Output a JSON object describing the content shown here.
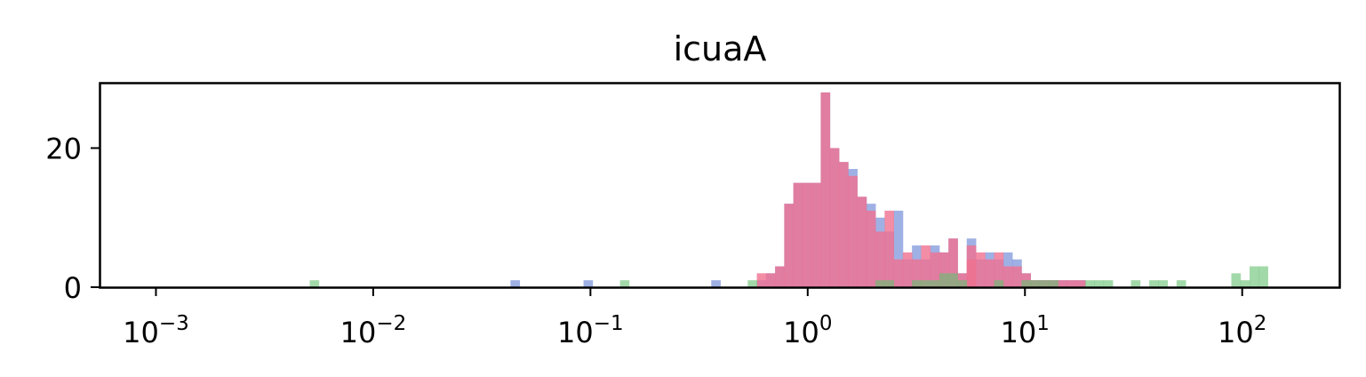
{
  "chart_data": {
    "type": "histogram",
    "title": "icuaA",
    "xlabel": "",
    "ylabel": "",
    "xscale": "log",
    "xlim": [
      0.00055,
      280
    ],
    "ylim": [
      0,
      29.4
    ],
    "grid": false,
    "legend": "none",
    "x_ticks": [
      {
        "value": 0.001,
        "base": "10",
        "exp": "−3"
      },
      {
        "value": 0.01,
        "base": "10",
        "exp": "−2"
      },
      {
        "value": 0.1,
        "base": "10",
        "exp": "−1"
      },
      {
        "value": 1,
        "base": "10",
        "exp": "0"
      },
      {
        "value": 10,
        "base": "10",
        "exp": "1"
      },
      {
        "value": 100,
        "base": "10",
        "exp": "2"
      }
    ],
    "y_ticks": [
      {
        "value": 0,
        "label": "0"
      },
      {
        "value": 20,
        "label": "20"
      }
    ],
    "bin_edges_log10_start": -2.25,
    "bin_width_log10": 0.042,
    "series": [
      {
        "color": "#6b87d6",
        "opacity": 0.65,
        "bins": [
          [
            0.0437,
            1
          ],
          [
            0.0997,
            1
          ],
          [
            0.376,
            1
          ],
          [
            0.624,
            1
          ],
          [
            0.686,
            2
          ],
          [
            0.753,
            3
          ],
          [
            0.827,
            12
          ],
          [
            0.908,
            15
          ],
          [
            0.998,
            15
          ],
          [
            1.096,
            15
          ],
          [
            1.204,
            28
          ],
          [
            1.322,
            20
          ],
          [
            1.452,
            18
          ],
          [
            1.595,
            17
          ],
          [
            1.752,
            13
          ],
          [
            1.924,
            12
          ],
          [
            2.114,
            10
          ],
          [
            2.321,
            8
          ],
          [
            2.549,
            11
          ],
          [
            2.8,
            4
          ],
          [
            3.076,
            6
          ],
          [
            3.378,
            4
          ],
          [
            3.71,
            6
          ],
          [
            4.075,
            5
          ],
          [
            4.476,
            7
          ],
          [
            4.916,
            2
          ],
          [
            5.399,
            1
          ],
          [
            5.93,
            7
          ],
          [
            6.514,
            4
          ],
          [
            7.154,
            5
          ],
          [
            7.857,
            4
          ],
          [
            8.63,
            5
          ],
          [
            9.479,
            4
          ],
          [
            10.41,
            2
          ],
          [
            11.43,
            1
          ],
          [
            12.56,
            1
          ],
          [
            13.79,
            1
          ],
          [
            15.15,
            1
          ],
          [
            16.64,
            1
          ],
          [
            18.28,
            1
          ]
        ]
      },
      {
        "color": "#f07090",
        "opacity": 0.8,
        "bins": [
          [
            0.624,
            2
          ],
          [
            0.686,
            2
          ],
          [
            0.753,
            3
          ],
          [
            0.827,
            12
          ],
          [
            0.908,
            15
          ],
          [
            0.998,
            15
          ],
          [
            1.096,
            15
          ],
          [
            1.204,
            28
          ],
          [
            1.322,
            20
          ],
          [
            1.452,
            18
          ],
          [
            1.595,
            16
          ],
          [
            1.752,
            13
          ],
          [
            1.924,
            11
          ],
          [
            2.114,
            8
          ],
          [
            2.321,
            11
          ],
          [
            2.549,
            4
          ],
          [
            2.8,
            5
          ],
          [
            3.076,
            4
          ],
          [
            3.378,
            6
          ],
          [
            3.71,
            5
          ],
          [
            4.075,
            5
          ],
          [
            4.476,
            7
          ],
          [
            4.916,
            2
          ],
          [
            5.399,
            6
          ],
          [
            5.93,
            4
          ],
          [
            6.514,
            5
          ],
          [
            7.154,
            4
          ],
          [
            7.857,
            5
          ],
          [
            8.63,
            3
          ],
          [
            9.479,
            3
          ],
          [
            10.41,
            2
          ],
          [
            11.43,
            1
          ],
          [
            12.56,
            1
          ],
          [
            13.79,
            1
          ],
          [
            15.15,
            1
          ],
          [
            16.64,
            1
          ],
          [
            18.28,
            1
          ]
        ]
      },
      {
        "color": "#64c070",
        "opacity": 0.6,
        "bins": [
          [
            0.00511,
            1
          ],
          [
            0.147,
            1
          ],
          [
            0.577,
            1
          ],
          [
            2.2,
            1
          ],
          [
            2.417,
            1
          ],
          [
            3.2,
            1
          ],
          [
            3.51,
            1
          ],
          [
            3.86,
            1
          ],
          [
            4.24,
            2
          ],
          [
            4.65,
            2
          ],
          [
            5.11,
            1
          ],
          [
            7.5,
            1
          ],
          [
            10.1,
            1
          ],
          [
            11.1,
            1
          ],
          [
            12.2,
            1
          ],
          [
            13.4,
            1
          ],
          [
            20.2,
            1
          ],
          [
            22.2,
            1
          ],
          [
            24.4,
            1
          ],
          [
            32.3,
            1
          ],
          [
            38.8,
            1
          ],
          [
            42.6,
            1
          ],
          [
            51.4,
            1
          ],
          [
            94.5,
            2
          ],
          [
            104.0,
            1
          ],
          [
            114.0,
            3
          ],
          [
            125.0,
            3
          ]
        ]
      }
    ]
  }
}
